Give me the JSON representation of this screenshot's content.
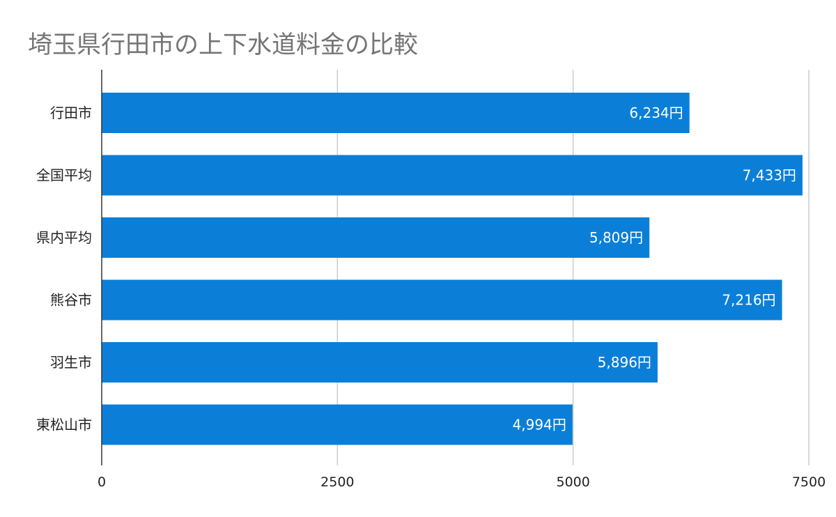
{
  "chart_data": {
    "type": "bar",
    "orientation": "horizontal",
    "title": "埼玉県行田市の上下水道料金の比較",
    "xlabel": "",
    "ylabel": "",
    "categories": [
      "行田市",
      "全国平均",
      "県内平均",
      "熊谷市",
      "羽生市",
      "東松山市"
    ],
    "values": [
      6234,
      7433,
      5809,
      7216,
      5896,
      4994
    ],
    "data_labels": [
      "6,234円",
      "7,433円",
      "5,809円",
      "7,216円",
      "5,896円",
      "4,994円"
    ],
    "xlim": [
      0,
      7500
    ],
    "ticks": [
      0,
      2500,
      5000,
      7500
    ],
    "tick_labels": [
      "0",
      "2500",
      "5000",
      "7500"
    ],
    "grid": true,
    "legend": "none",
    "colors": {
      "bar": "#0b7fd8",
      "grid": "#cccccc",
      "axis": "#333333",
      "title": "#757575",
      "label": "#222222",
      "data_label": "#ffffff"
    }
  }
}
